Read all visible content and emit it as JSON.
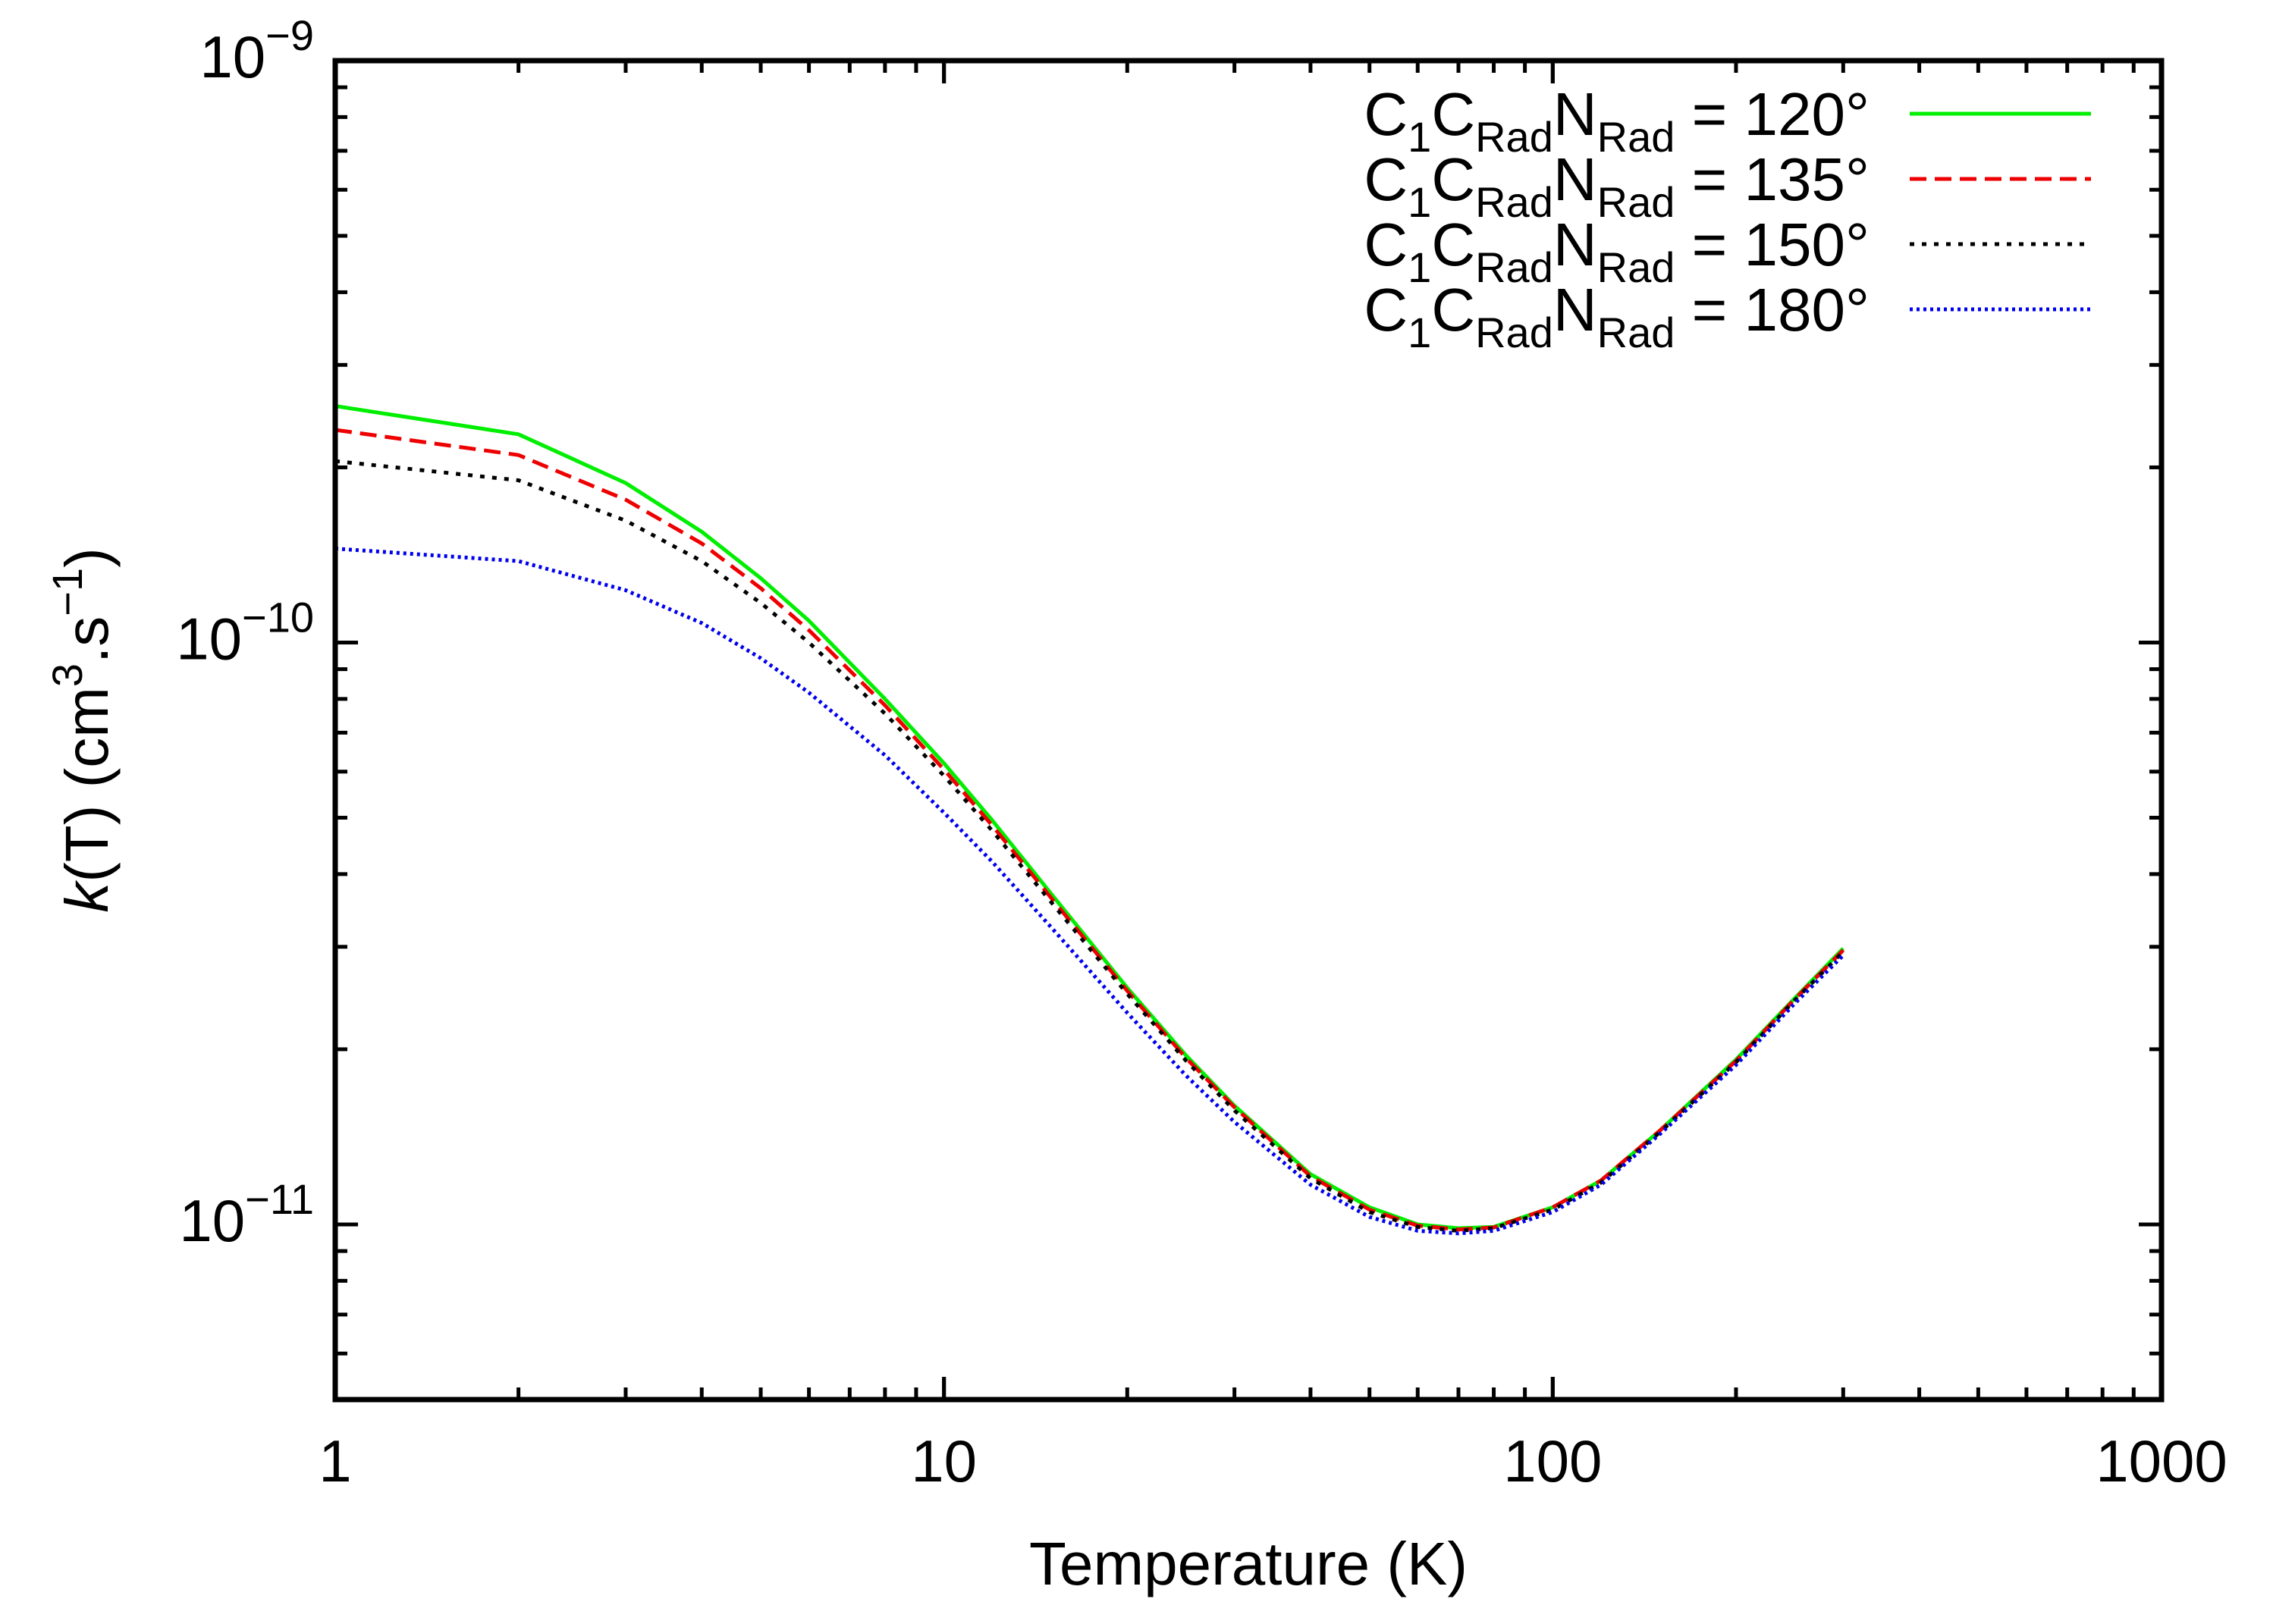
{
  "chart_data": {
    "type": "line",
    "xlabel": "Temperature (K)",
    "ylabel": {
      "italic": "k",
      "pre_exp": "(T) (cm",
      "exp1": "3",
      "mid": ".s",
      "exp2": "−1",
      "post": ")"
    },
    "x_scale": "log",
    "y_scale": "log",
    "xlim": [
      1,
      1000
    ],
    "ylim": [
      5e-12,
      1e-09
    ],
    "x_ticks": [
      {
        "value": 1,
        "label": "1"
      },
      {
        "value": 10,
        "label": "10"
      },
      {
        "value": 100,
        "label": "100"
      },
      {
        "value": 1000,
        "label": "1000"
      }
    ],
    "y_ticks": [
      {
        "value": 1e-11,
        "base": "10",
        "exp": "−11"
      },
      {
        "value": 1e-10,
        "base": "10",
        "exp": "−10"
      },
      {
        "value": 1e-09,
        "base": "10",
        "exp": "−9"
      }
    ],
    "grid": false,
    "legend_position": "top-right",
    "x": [
      1,
      2,
      3,
      4,
      5,
      6,
      8,
      10,
      12,
      15,
      20,
      25,
      30,
      40,
      50,
      60,
      70,
      80,
      100,
      120,
      150,
      200,
      250,
      300
    ],
    "series": [
      {
        "legend": {
          "main": "C",
          "sub1": "1",
          "mid": "C",
          "sub2": "Rad",
          "mid2": "N",
          "sub3": "Rad",
          "tail": " = 120°"
        },
        "color": "#00ee00",
        "dash": "solid",
        "values": [
          2.55e-10,
          2.28e-10,
          1.88e-10,
          1.55e-10,
          1.29e-10,
          1.09e-10,
          8e-11,
          6.2e-11,
          4.95e-11,
          3.7e-11,
          2.55e-11,
          1.95e-11,
          1.6e-11,
          1.22e-11,
          1.07e-11,
          1e-11,
          9.85e-12,
          9.9e-12,
          1.07e-11,
          1.19e-11,
          1.45e-11,
          1.92e-11,
          2.45e-11,
          2.98e-11
        ]
      },
      {
        "legend": {
          "main": "C",
          "sub1": "1",
          "mid": "C",
          "sub2": "Rad",
          "mid2": "N",
          "sub3": "Rad",
          "tail": " = 135°"
        },
        "color": "#ee0000",
        "dash": "dashed",
        "values": [
          2.32e-10,
          2.1e-10,
          1.76e-10,
          1.48e-10,
          1.24e-10,
          1.05e-10,
          7.8e-11,
          6.05e-11,
          4.85e-11,
          3.64e-11,
          2.52e-11,
          1.93e-11,
          1.59e-11,
          1.21e-11,
          1.06e-11,
          9.95e-12,
          9.8e-12,
          9.88e-12,
          1.07e-11,
          1.19e-11,
          1.45e-11,
          1.91e-11,
          2.44e-11,
          2.96e-11
        ]
      },
      {
        "legend": {
          "main": "C",
          "sub1": "1",
          "mid": "C",
          "sub2": "Rad",
          "mid2": "N",
          "sub3": "Rad",
          "tail": " = 150°"
        },
        "color": "#000000",
        "dash": "dotted",
        "values": [
          2.05e-10,
          1.9e-10,
          1.62e-10,
          1.38e-10,
          1.17e-10,
          1e-10,
          7.55e-11,
          5.9e-11,
          4.75e-11,
          3.58e-11,
          2.49e-11,
          1.91e-11,
          1.57e-11,
          1.2e-11,
          1.05e-11,
          9.9e-12,
          9.75e-12,
          9.85e-12,
          1.06e-11,
          1.18e-11,
          1.44e-11,
          1.9e-11,
          2.43e-11,
          2.94e-11
        ]
      },
      {
        "legend": {
          "main": "C",
          "sub1": "1",
          "mid": "C",
          "sub2": "Rad",
          "mid2": "N",
          "sub3": "Rad",
          "tail": " = 180°"
        },
        "color": "#0000ee",
        "dash": "dotted-fine",
        "values": [
          1.45e-10,
          1.38e-10,
          1.23e-10,
          1.08e-10,
          9.4e-11,
          8.2e-11,
          6.4e-11,
          5.1e-11,
          4.2e-11,
          3.24e-11,
          2.31e-11,
          1.8e-11,
          1.5e-11,
          1.17e-11,
          1.03e-11,
          9.75e-12,
          9.65e-12,
          9.75e-12,
          1.05e-11,
          1.17e-11,
          1.43e-11,
          1.88e-11,
          2.4e-11,
          2.9e-11
        ]
      }
    ]
  }
}
